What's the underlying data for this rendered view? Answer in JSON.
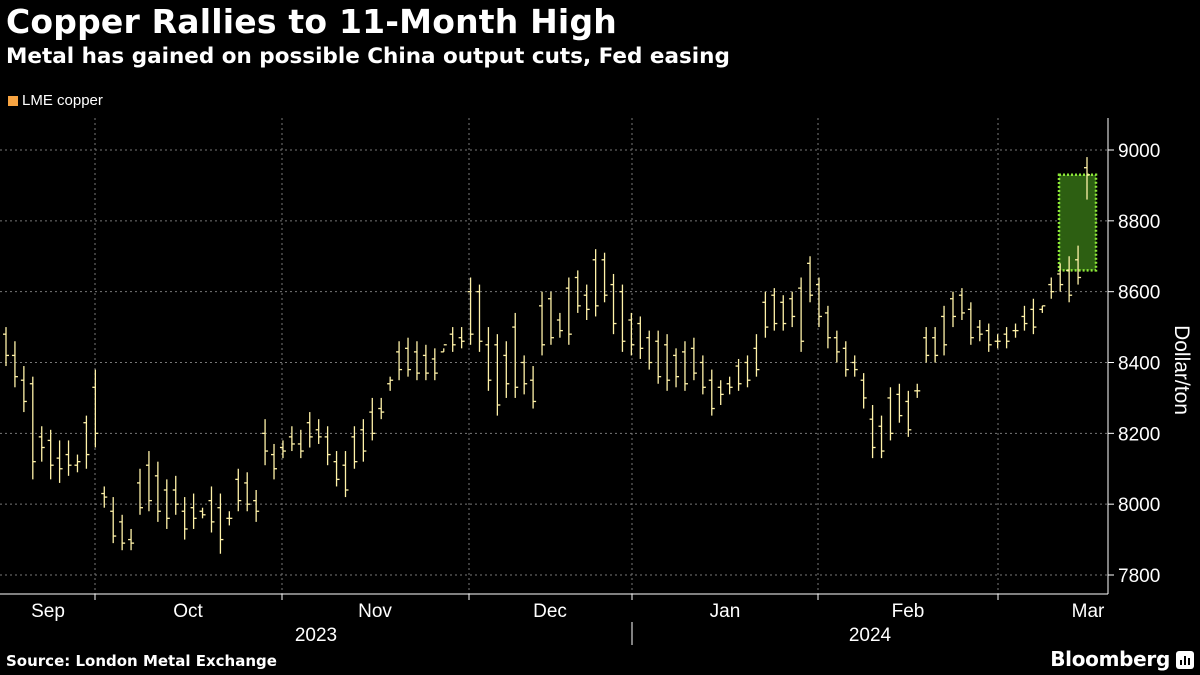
{
  "title": "Copper Rallies to 11-Month High",
  "subtitle": "Metal has gained on possible China output cuts, Fed easing",
  "source": "Source: London Metal Exchange",
  "brand": "Bloomberg",
  "colors": {
    "background": "#000000",
    "bars": "#fff2a8",
    "legend_swatch": "#f7a442",
    "highlight_fill": "#2d5f12",
    "highlight_border": "#8ce638",
    "grid": "#777777"
  },
  "chart_data": {
    "type": "ohlc",
    "title": "Copper Rallies to 11-Month High",
    "series": [
      {
        "name": "LME copper",
        "high": [
          8500,
          8460,
          8390,
          8360,
          8220,
          8210,
          8180,
          8180,
          8140,
          8250,
          8380,
          8050,
          8020,
          7970,
          7930,
          8100,
          8150,
          8120,
          8070,
          8080,
          8020,
          8030,
          7990,
          8050,
          8030,
          7980,
          8100,
          8090,
          8040,
          8240,
          8170,
          8180,
          8220,
          8210,
          8260,
          8240,
          8220,
          8150,
          8150,
          8220,
          8240,
          8300,
          8300,
          8360,
          8460,
          8470,
          8460,
          8450,
          8440,
          8440,
          8500,
          8500,
          8640,
          8620,
          8500,
          8480,
          8460,
          8540,
          8420,
          8390,
          8600,
          8600,
          8540,
          8640,
          8660,
          8620,
          8720,
          8710,
          8650,
          8620,
          8540,
          8530,
          8490,
          8490,
          8480,
          8440,
          8460,
          8470,
          8420,
          8380,
          8350,
          8360,
          8410,
          8420,
          8480,
          8600,
          8610,
          8590,
          8600,
          8640,
          8700,
          8640,
          8560,
          8490,
          8460,
          8420,
          8370,
          8280,
          8250,
          8330,
          8340,
          8320,
          8340,
          8500,
          8500,
          8560,
          8600,
          8610,
          8570,
          8520,
          8510,
          8480,
          8500,
          8510,
          8560,
          8580,
          8560,
          8640,
          8680,
          8700,
          8730,
          8980
        ],
        "low": [
          8390,
          8330,
          8260,
          8070,
          8120,
          8070,
          8060,
          8080,
          8090,
          8100,
          8160,
          7990,
          7890,
          7870,
          7870,
          7970,
          7980,
          7950,
          7930,
          7970,
          7900,
          7930,
          7960,
          7920,
          7860,
          7940,
          7980,
          7980,
          7950,
          8110,
          8070,
          8130,
          8150,
          8130,
          8160,
          8170,
          8110,
          8050,
          8020,
          8100,
          8120,
          8180,
          8240,
          8320,
          8350,
          8360,
          8350,
          8350,
          8350,
          8430,
          8430,
          8440,
          8450,
          8430,
          8320,
          8250,
          8300,
          8300,
          8310,
          8270,
          8420,
          8450,
          8470,
          8450,
          8540,
          8520,
          8530,
          8570,
          8480,
          8430,
          8420,
          8410,
          8380,
          8340,
          8320,
          8330,
          8320,
          8350,
          8310,
          8250,
          8280,
          8310,
          8320,
          8330,
          8360,
          8470,
          8490,
          8490,
          8500,
          8430,
          8570,
          8500,
          8440,
          8400,
          8360,
          8360,
          8270,
          8130,
          8130,
          8180,
          8230,
          8190,
          8300,
          8400,
          8400,
          8420,
          8500,
          8520,
          8450,
          8460,
          8430,
          8440,
          8440,
          8470,
          8490,
          8480,
          8540,
          8580,
          8600,
          8570,
          8620,
          8860
        ],
        "open": [
          8480,
          8420,
          8350,
          8340,
          8190,
          8180,
          8130,
          8140,
          8110,
          8230,
          8330,
          8030,
          7980,
          7950,
          7900,
          8060,
          8110,
          8080,
          8040,
          8040,
          7980,
          7990,
          7980,
          8010,
          7990,
          7960,
          8070,
          8060,
          8010,
          8200,
          8140,
          8160,
          8190,
          8170,
          8230,
          8210,
          8190,
          8120,
          8110,
          8190,
          8210,
          8260,
          8270,
          8340,
          8430,
          8440,
          8430,
          8420,
          8410,
          8430,
          8480,
          8470,
          8600,
          8600,
          8450,
          8450,
          8420,
          8500,
          8400,
          8350,
          8560,
          8580,
          8520,
          8610,
          8640,
          8590,
          8690,
          8690,
          8620,
          8600,
          8520,
          8510,
          8470,
          8460,
          8450,
          8420,
          8430,
          8440,
          8400,
          8350,
          8330,
          8340,
          8390,
          8400,
          8440,
          8570,
          8590,
          8570,
          8580,
          8610,
          8680,
          8620,
          8540,
          8470,
          8440,
          8400,
          8350,
          8240,
          8220,
          8300,
          8310,
          8290,
          8320,
          8470,
          8470,
          8530,
          8580,
          8590,
          8550,
          8500,
          8490,
          8460,
          8480,
          8490,
          8530,
          8550,
          8550,
          8620,
          8650,
          8660,
          8690,
          8950
        ],
        "close": [
          8420,
          8360,
          8290,
          8120,
          8160,
          8110,
          8100,
          8110,
          8120,
          8140,
          8200,
          8020,
          7910,
          7890,
          7890,
          7990,
          8010,
          7980,
          7960,
          8000,
          7930,
          7960,
          7970,
          7950,
          7900,
          7960,
          8010,
          8000,
          7980,
          8150,
          8100,
          8150,
          8170,
          8150,
          8190,
          8190,
          8140,
          8070,
          8040,
          8120,
          8150,
          8200,
          8260,
          8350,
          8380,
          8380,
          8370,
          8370,
          8370,
          8450,
          8450,
          8460,
          8480,
          8460,
          8350,
          8280,
          8340,
          8330,
          8340,
          8290,
          8450,
          8470,
          8490,
          8480,
          8560,
          8550,
          8560,
          8590,
          8510,
          8460,
          8450,
          8440,
          8400,
          8360,
          8350,
          8360,
          8340,
          8370,
          8330,
          8270,
          8310,
          8330,
          8340,
          8350,
          8380,
          8500,
          8510,
          8510,
          8530,
          8460,
          8590,
          8530,
          8470,
          8430,
          8380,
          8380,
          8300,
          8160,
          8150,
          8200,
          8250,
          8210,
          8320,
          8420,
          8420,
          8450,
          8530,
          8540,
          8470,
          8480,
          8450,
          8460,
          8460,
          8490,
          8510,
          8500,
          8560,
          8600,
          8620,
          8590,
          8640,
          8930
        ]
      }
    ],
    "highlight": {
      "from": 8660,
      "to": 8930
    },
    "x_ticks": [
      "Sep",
      "Oct",
      "Nov",
      "Dec",
      "Jan",
      "Feb",
      "Mar"
    ],
    "years": [
      "2023",
      "2024"
    ],
    "ylabel": "Dollar/ton",
    "y_ticks": [
      7800,
      8000,
      8200,
      8400,
      8600,
      8800,
      9000
    ],
    "ylim": [
      7750,
      9100
    ],
    "grid": true,
    "legend_position": "top-left"
  }
}
